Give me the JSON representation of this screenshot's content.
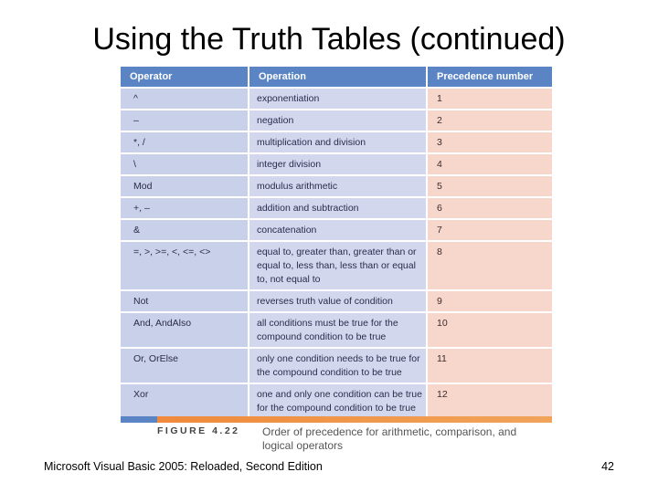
{
  "title": "Using the Truth Tables (continued)",
  "table": {
    "headers": [
      "Operator",
      "Operation",
      "Precedence number"
    ],
    "rows": [
      {
        "operator": "^",
        "operation": "exponentiation",
        "precedence": "1"
      },
      {
        "operator": "–",
        "operation": "negation",
        "precedence": "2"
      },
      {
        "operator": "*, /",
        "operation": "multiplication and division",
        "precedence": "3"
      },
      {
        "operator": "\\",
        "operation": "integer division",
        "precedence": "4"
      },
      {
        "operator": "Mod",
        "operation": "modulus arithmetic",
        "precedence": "5"
      },
      {
        "operator": "+, –",
        "operation": "addition and subtraction",
        "precedence": "6"
      },
      {
        "operator": "&",
        "operation": "concatenation",
        "precedence": "7"
      },
      {
        "operator": "=, >, >=, <, <=, <>",
        "operation": "equal to, greater than, greater than or equal to, less than, less than or equal to, not equal to",
        "precedence": "8"
      },
      {
        "operator": "Not",
        "operation": "reverses truth value of condition",
        "precedence": "9"
      },
      {
        "operator": "And, AndAlso",
        "operation": "all conditions must be true for the compound condition to be true",
        "precedence": "10"
      },
      {
        "operator": "Or, OrElse",
        "operation": "only one condition needs to be true for the compound condition to be true",
        "precedence": "11"
      },
      {
        "operator": "Xor",
        "operation": "one and only one condition can be true for the compound condition to be true",
        "precedence": "12"
      }
    ]
  },
  "figure": {
    "label": "FIGURE 4.22",
    "caption": "Order of precedence for arithmetic, comparison, and logical operators"
  },
  "footer": {
    "text": "Microsoft Visual Basic 2005: Reloaded, Second Edition",
    "page_number": "42"
  },
  "colors": {
    "header_blue": "#5b84c4",
    "operator_column": "#c9d0e9",
    "operation_column": "#d3d7ee",
    "precedence_column": "#f7d6cc",
    "figure_bar_orange": "#f08a3c"
  }
}
